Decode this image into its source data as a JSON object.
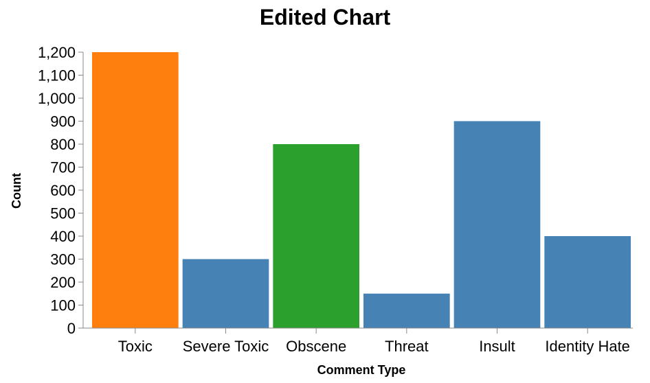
{
  "chart_data": {
    "type": "bar",
    "title": "Edited Chart",
    "xlabel": "Comment Type",
    "ylabel": "Count",
    "categories": [
      "Toxic",
      "Severe Toxic",
      "Obscene",
      "Threat",
      "Insult",
      "Identity Hate"
    ],
    "values": [
      1200,
      300,
      800,
      150,
      900,
      400
    ],
    "colors": [
      "#ff7f0e",
      "#4682b4",
      "#2ca02c",
      "#4682b4",
      "#4682b4",
      "#4682b4"
    ],
    "ylim": [
      0,
      1200
    ],
    "yticks": [
      0,
      100,
      200,
      300,
      400,
      500,
      600,
      700,
      800,
      900,
      1000,
      1100,
      1200
    ],
    "ytick_labels": [
      "0",
      "100",
      "200",
      "300",
      "400",
      "500",
      "600",
      "700",
      "800",
      "900",
      "1,000",
      "1,100",
      "1,200"
    ],
    "grid": false,
    "legend": "none"
  }
}
